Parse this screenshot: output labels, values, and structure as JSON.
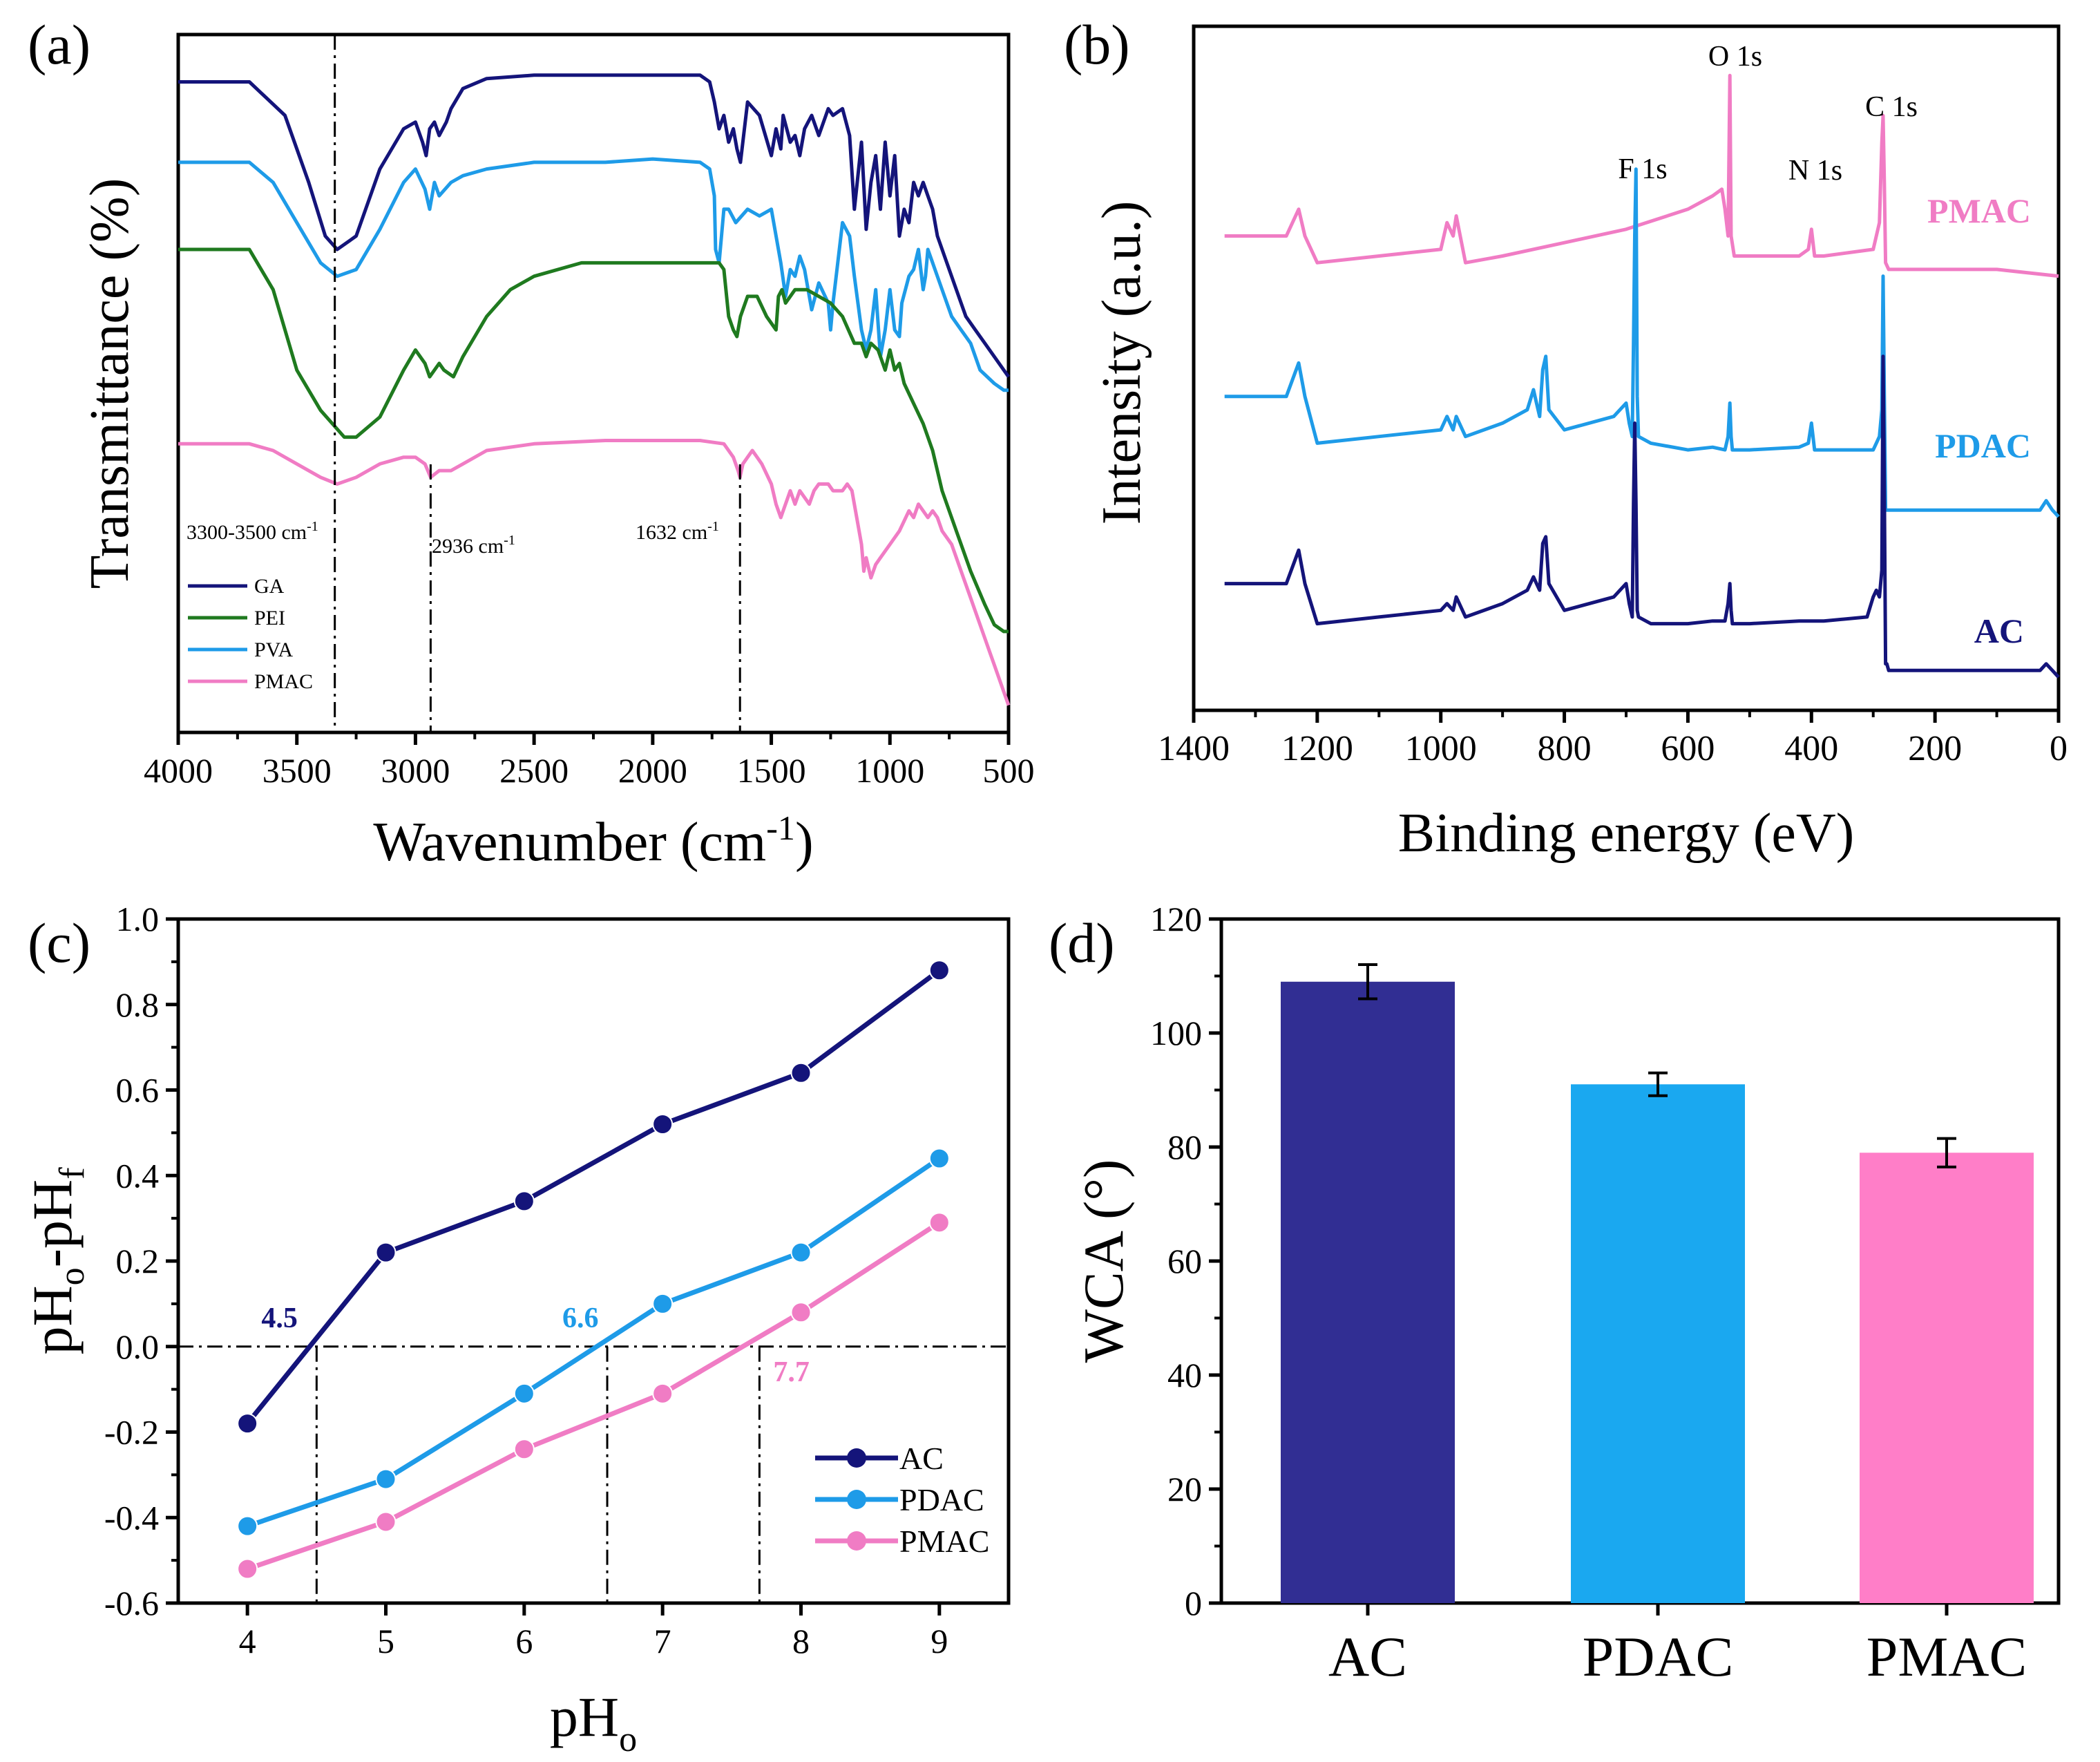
{
  "colors": {
    "ga": "#14147a",
    "pei": "#1f7a1f",
    "pva": "#1e9be8",
    "pmac": "#f07cc4",
    "ac": "#14147a",
    "pdac": "#1e9be8",
    "ac_bar": "#312e93",
    "pdac_bar": "#1aa8f0",
    "pmac_bar": "#ff7ec8",
    "axis": "#000000"
  },
  "chart_data": [
    {
      "panel": "(a)",
      "type": "line",
      "xlabel": "Wavenumber (cm",
      "xlabel_sup": "-1",
      "xlabel_end": ")",
      "ylabel": "Transmittance (%)",
      "xlim": [
        4000,
        500
      ],
      "ylim": [
        0,
        100
      ],
      "xticks": [
        4000,
        3500,
        3000,
        2500,
        2000,
        1500,
        1000,
        500
      ],
      "legend": [
        "GA",
        "PEI",
        "PVA",
        "PMAC"
      ],
      "markers": [
        {
          "x": 3340,
          "label": "3300-3500 cm",
          "sup": "-1"
        },
        {
          "x": 2936,
          "label": "2936 cm",
          "sup": "-1"
        },
        {
          "x": 1632,
          "label": "1632 cm",
          "sup": "-1"
        }
      ],
      "series": [
        {
          "name": "GA",
          "x": [
            4000,
            3700,
            3550,
            3450,
            3380,
            3330,
            3250,
            3150,
            3050,
            3000,
            2970,
            2955,
            2940,
            2920,
            2900,
            2870,
            2850,
            2800,
            2700,
            2500,
            2200,
            2000,
            1800,
            1760,
            1740,
            1720,
            1700,
            1680,
            1660,
            1645,
            1630,
            1600,
            1550,
            1500,
            1480,
            1460,
            1450,
            1420,
            1400,
            1380,
            1360,
            1330,
            1300,
            1260,
            1240,
            1200,
            1170,
            1150,
            1120,
            1100,
            1080,
            1060,
            1040,
            1020,
            1000,
            980,
            960,
            940,
            920,
            900,
            880,
            860,
            840,
            820,
            800,
            760,
            720,
            680,
            640,
            600,
            560,
            520,
            500
          ],
          "y": [
            95,
            95,
            90,
            80,
            72,
            70,
            72,
            82,
            88,
            89,
            86,
            84,
            88,
            89,
            87,
            89,
            91,
            94,
            95.5,
            96,
            96,
            96,
            96,
            95,
            92,
            88,
            90,
            86,
            88,
            85,
            83,
            92,
            90,
            84,
            88,
            85,
            90,
            86,
            87,
            84,
            88,
            90,
            87,
            91,
            90,
            91,
            87,
            76,
            86,
            73,
            80,
            84,
            76,
            86,
            78,
            84,
            72,
            76,
            74,
            80,
            78,
            80,
            78,
            76,
            72,
            68,
            64,
            60,
            58,
            56,
            54,
            52,
            51
          ]
        },
        {
          "name": "PVA",
          "x": [
            4000,
            3700,
            3600,
            3500,
            3400,
            3330,
            3250,
            3150,
            3050,
            3000,
            2960,
            2940,
            2920,
            2900,
            2850,
            2800,
            2700,
            2500,
            2200,
            2000,
            1800,
            1760,
            1740,
            1735,
            1720,
            1700,
            1680,
            1650,
            1600,
            1550,
            1500,
            1460,
            1440,
            1420,
            1400,
            1380,
            1360,
            1330,
            1300,
            1260,
            1250,
            1240,
            1200,
            1170,
            1150,
            1120,
            1100,
            1080,
            1060,
            1040,
            1020,
            1000,
            980,
            960,
            950,
            920,
            900,
            880,
            860,
            850,
            840,
            820,
            780,
            740,
            700,
            660,
            620,
            560,
            520,
            500
          ],
          "y": [
            83,
            83,
            80,
            74,
            68,
            66,
            67,
            73,
            80,
            82,
            79,
            76,
            80,
            78,
            80,
            81,
            82,
            83,
            83,
            83.5,
            83,
            82,
            78,
            70,
            68,
            76,
            76,
            74,
            76,
            75,
            76,
            68,
            63,
            67,
            66,
            69,
            67,
            61,
            65,
            62,
            58,
            62,
            74,
            72,
            66,
            58,
            55,
            58,
            64,
            54,
            58,
            64,
            58,
            57,
            62,
            66,
            67,
            70,
            64,
            66,
            70,
            68,
            64,
            60,
            58,
            56,
            52,
            50,
            49,
            49
          ]
        },
        {
          "name": "PEI",
          "x": [
            4000,
            3700,
            3600,
            3500,
            3400,
            3300,
            3250,
            3150,
            3050,
            3000,
            2960,
            2940,
            2900,
            2880,
            2840,
            2800,
            2700,
            2600,
            2500,
            2300,
            2100,
            2000,
            1800,
            1720,
            1700,
            1680,
            1660,
            1645,
            1630,
            1600,
            1560,
            1520,
            1480,
            1470,
            1455,
            1440,
            1400,
            1350,
            1300,
            1250,
            1200,
            1150,
            1120,
            1100,
            1080,
            1050,
            1020,
            1000,
            980,
            960,
            940,
            900,
            860,
            820,
            780,
            720,
            660,
            600,
            560,
            520,
            500
          ],
          "y": [
            70,
            70,
            64,
            52,
            46,
            42,
            42,
            45,
            52,
            55,
            53,
            51,
            53,
            52,
            51,
            54,
            60,
            64,
            66,
            68,
            68,
            68,
            68,
            68,
            67,
            60,
            58,
            57,
            60,
            63,
            63,
            60,
            58,
            63,
            64,
            62,
            64,
            64,
            63,
            62,
            60,
            56,
            56,
            54,
            56,
            55,
            52,
            55,
            52,
            53,
            50,
            47,
            44,
            40,
            34,
            28,
            22,
            17,
            14,
            13,
            13
          ]
        },
        {
          "name": "PMAC",
          "x": [
            4000,
            3700,
            3600,
            3500,
            3400,
            3330,
            3250,
            3150,
            3050,
            3000,
            2960,
            2936,
            2900,
            2850,
            2800,
            2700,
            2500,
            2200,
            2000,
            1800,
            1700,
            1660,
            1640,
            1632,
            1620,
            1600,
            1580,
            1560,
            1540,
            1500,
            1480,
            1460,
            1450,
            1420,
            1400,
            1380,
            1360,
            1340,
            1320,
            1300,
            1260,
            1240,
            1200,
            1180,
            1160,
            1140,
            1120,
            1110,
            1100,
            1080,
            1060,
            1040,
            1000,
            960,
            920,
            900,
            880,
            860,
            840,
            820,
            800,
            780,
            740,
            700,
            660,
            620,
            580,
            560,
            520,
            500
          ],
          "y": [
            41,
            41,
            40,
            38,
            36,
            35,
            36,
            38,
            39,
            39,
            38,
            36,
            37,
            37,
            38,
            40,
            41,
            41.5,
            41.5,
            41.5,
            41,
            39,
            37,
            36,
            38,
            39,
            40,
            39,
            38,
            35,
            32,
            30,
            31,
            34,
            32,
            34,
            33,
            32,
            34,
            35,
            35,
            34,
            34,
            35,
            34,
            30,
            26,
            22,
            24,
            21,
            23,
            24,
            26,
            28,
            31,
            30,
            32,
            31,
            30,
            31,
            30,
            28,
            26,
            22,
            18,
            14,
            10,
            8,
            4,
            2
          ]
        }
      ]
    },
    {
      "panel": "(b)",
      "type": "line",
      "xlabel": "Binding energy (eV)",
      "ylabel": "Intensity (a.u.)",
      "xlim": [
        1400,
        0
      ],
      "xticks": [
        1400,
        1200,
        1000,
        800,
        600,
        400,
        200,
        0
      ],
      "annotations": [
        "O 1s",
        "C 1s",
        "F 1s",
        "N 1s"
      ],
      "series_labels": [
        "PMAC",
        "PDAC",
        "AC"
      ],
      "series": [
        {
          "name": "PMAC",
          "x": [
            1350,
            1250,
            1230,
            1220,
            1200,
            1100,
            1000,
            990,
            980,
            975,
            960,
            900,
            800,
            700,
            600,
            560,
            545,
            540,
            535,
            532,
            530,
            525,
            500,
            420,
            405,
            400,
            395,
            380,
            300,
            290,
            286,
            284,
            282,
            280,
            275,
            200,
            100,
            0
          ],
          "y": [
            3.2,
            3.2,
            3.4,
            3.2,
            3.0,
            3.05,
            3.1,
            3.3,
            3.2,
            3.35,
            3.0,
            3.05,
            3.15,
            3.25,
            3.4,
            3.5,
            3.55,
            3.4,
            3.2,
            4.4,
            3.2,
            3.05,
            3.05,
            3.05,
            3.1,
            3.25,
            3.05,
            3.05,
            3.1,
            3.3,
            3.9,
            4.1,
            3.6,
            3.0,
            2.95,
            2.95,
            2.95,
            2.9
          ]
        },
        {
          "name": "PDAC",
          "x": [
            1350,
            1250,
            1230,
            1220,
            1200,
            1100,
            1000,
            990,
            980,
            975,
            960,
            900,
            860,
            850,
            845,
            840,
            835,
            830,
            825,
            800,
            720,
            700,
            695,
            690,
            688,
            686,
            684,
            682,
            680,
            660,
            600,
            560,
            540,
            535,
            532,
            530,
            528,
            500,
            420,
            405,
            400,
            395,
            380,
            310,
            300,
            295,
            290,
            286,
            284,
            282,
            280,
            275,
            200,
            100,
            30,
            20,
            10,
            0
          ],
          "y": [
            2.0,
            2.0,
            2.25,
            2.0,
            1.65,
            1.7,
            1.75,
            1.85,
            1.75,
            1.85,
            1.7,
            1.8,
            1.9,
            2.05,
            1.95,
            1.85,
            2.2,
            2.3,
            1.9,
            1.75,
            1.85,
            1.95,
            1.8,
            1.7,
            2.4,
            3.2,
            3.7,
            2.0,
            1.7,
            1.65,
            1.6,
            1.62,
            1.6,
            1.7,
            1.95,
            1.7,
            1.6,
            1.6,
            1.62,
            1.65,
            1.8,
            1.6,
            1.6,
            1.6,
            1.6,
            1.65,
            1.7,
            1.9,
            2.9,
            2.0,
            1.15,
            1.15,
            1.15,
            1.15,
            1.15,
            1.22,
            1.15,
            1.1
          ]
        },
        {
          "name": "AC",
          "x": [
            1350,
            1250,
            1230,
            1220,
            1200,
            1100,
            1000,
            990,
            980,
            975,
            960,
            900,
            860,
            850,
            845,
            840,
            835,
            830,
            825,
            800,
            720,
            700,
            695,
            690,
            688,
            686,
            684,
            682,
            680,
            660,
            600,
            560,
            540,
            535,
            532,
            530,
            528,
            500,
            420,
            400,
            380,
            310,
            300,
            295,
            290,
            286,
            284,
            282,
            280,
            278,
            275,
            200,
            100,
            30,
            20,
            10,
            0
          ],
          "y": [
            0.6,
            0.6,
            0.85,
            0.6,
            0.3,
            0.35,
            0.4,
            0.45,
            0.4,
            0.5,
            0.35,
            0.45,
            0.55,
            0.65,
            0.6,
            0.55,
            0.9,
            0.95,
            0.6,
            0.4,
            0.5,
            0.6,
            0.45,
            0.35,
            1.2,
            1.8,
            1.2,
            0.4,
            0.35,
            0.3,
            0.3,
            0.32,
            0.32,
            0.45,
            0.6,
            0.4,
            0.3,
            0.3,
            0.32,
            0.32,
            0.32,
            0.35,
            0.5,
            0.55,
            0.5,
            0.7,
            2.3,
            1.3,
            0.0,
            0.0,
            -0.05,
            -0.05,
            -0.05,
            -0.05,
            -0.0,
            -0.05,
            -0.1
          ]
        }
      ]
    },
    {
      "panel": "(c)",
      "type": "line",
      "xlabel": "pH",
      "xlabel_sub": "o",
      "ylabel_parts": [
        "pH",
        "o",
        "-pH",
        "f"
      ],
      "xlim": [
        3.5,
        9.5
      ],
      "ylim": [
        -0.6,
        1.0
      ],
      "xticks": [
        4,
        5,
        6,
        7,
        8,
        9
      ],
      "yticks": [
        -0.6,
        -0.4,
        -0.2,
        0.0,
        0.2,
        0.4,
        0.6,
        0.8,
        1.0
      ],
      "ytick_labels": [
        "-0.6",
        "-0.4",
        "-0.2",
        "0.0",
        "0.2",
        "0.4",
        "0.6",
        "0.8",
        "1.0"
      ],
      "legend": [
        "AC",
        "PDAC",
        "PMAC"
      ],
      "pzc": [
        {
          "series": "AC",
          "x": 4.5,
          "label": "4.5"
        },
        {
          "series": "PDAC",
          "x": 6.6,
          "label": "6.6"
        },
        {
          "series": "PMAC",
          "x": 7.7,
          "label": "7.7"
        }
      ],
      "series": [
        {
          "name": "AC",
          "x": [
            4,
            5,
            6,
            7,
            8,
            9
          ],
          "values": [
            -0.18,
            0.22,
            0.34,
            0.52,
            0.64,
            0.88
          ]
        },
        {
          "name": "PDAC",
          "x": [
            4,
            5,
            6,
            7,
            8,
            9
          ],
          "values": [
            -0.42,
            -0.31,
            -0.11,
            0.1,
            0.22,
            0.44
          ]
        },
        {
          "name": "PMAC",
          "x": [
            4,
            5,
            6,
            7,
            8,
            9
          ],
          "values": [
            -0.52,
            -0.41,
            -0.24,
            -0.11,
            0.08,
            0.29
          ]
        }
      ]
    },
    {
      "panel": "(d)",
      "type": "bar",
      "ylabel": "WCA (°)",
      "ylim": [
        0,
        120
      ],
      "yticks": [
        0,
        20,
        40,
        60,
        80,
        100,
        120
      ],
      "categories": [
        "AC",
        "PDAC",
        "PMAC"
      ],
      "values": [
        109,
        91,
        79
      ],
      "errors": [
        3,
        2,
        2.5
      ]
    }
  ]
}
